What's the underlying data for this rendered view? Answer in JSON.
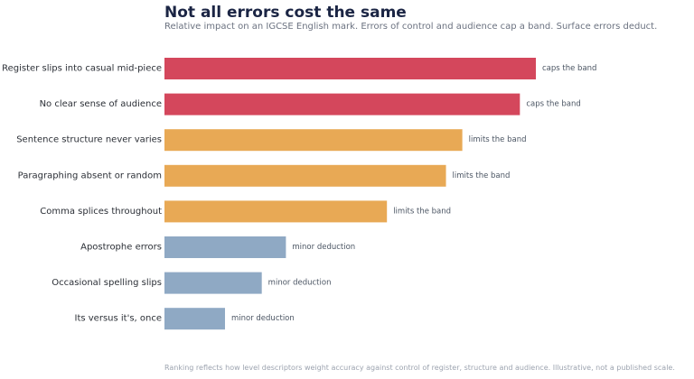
{
  "header": {
    "title": "Not all errors cost the same",
    "subtitle": "Relative impact on an IGCSE English mark. Errors of control and audience cap a band. Surface errors deduct."
  },
  "footer": {
    "note": "Ranking reflects how level descriptors weight accuracy against control of register, structure and audience. Illustrative, not a published scale."
  },
  "colors": {
    "caps the band": "#d4475c",
    "limits the band": "#e8a955",
    "minor deduction": "#8fa9c4"
  },
  "chart_data": {
    "type": "bar",
    "orientation": "horizontal",
    "title": "Not all errors cost the same",
    "subtitle": "Relative impact on an IGCSE English mark. Errors of control and audience cap a band. Surface errors deduct.",
    "categories": [
      "Register slips into casual mid-piece",
      "No clear sense of audience",
      "Sentence structure never varies",
      "Paragraphing absent or random",
      "Comma splices throughout",
      "Apostrophe errors",
      "Occasional spelling slips",
      "Its versus it's, once"
    ],
    "values": [
      100,
      95.7,
      80.2,
      75.8,
      59.9,
      32.7,
      26.2,
      16.3
    ],
    "labels": [
      "caps the band",
      "caps the band",
      "limits the band",
      "limits the band",
      "limits the band",
      "minor deduction",
      "minor deduction",
      "minor deduction"
    ],
    "xlim": [
      0,
      100
    ],
    "grid": false,
    "xaxis_visible": false
  }
}
